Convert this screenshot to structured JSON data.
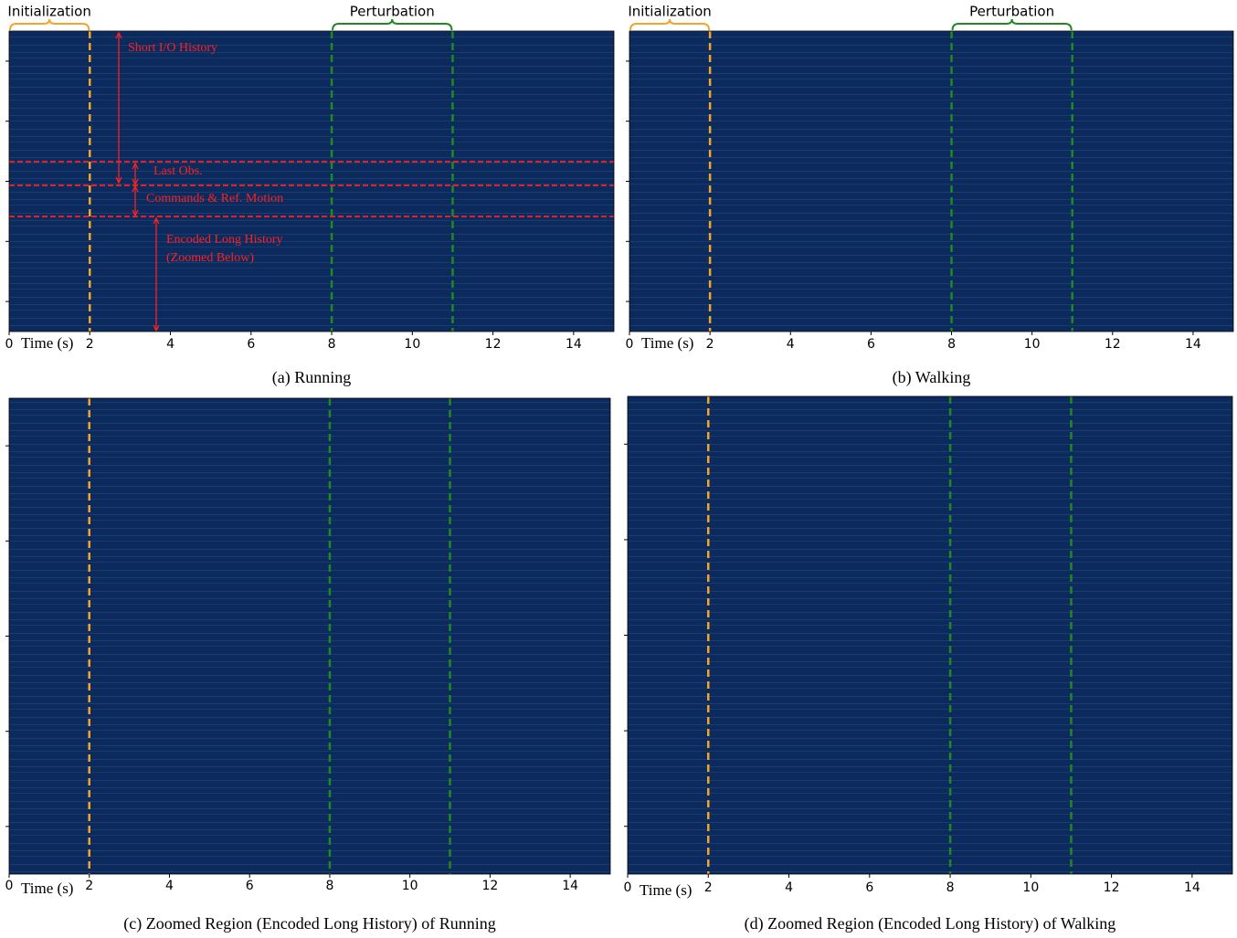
{
  "chart_data": [
    {
      "type": "heatmap",
      "caption": "(a) Running",
      "xlabel": "Time (s)",
      "xlim": [
        0,
        15
      ],
      "xticks": [
        0,
        2,
        4,
        6,
        8,
        10,
        12,
        14
      ],
      "markers": [
        {
          "x": 2,
          "color": "#f2a52a"
        },
        {
          "x": 8,
          "color": "#1f8a1f"
        },
        {
          "x": 11,
          "color": "#1f8a1f"
        }
      ],
      "brackets": [
        {
          "label": "Initialization",
          "range": [
            0,
            2
          ],
          "color": "#f2a52a"
        },
        {
          "label": "Perturbation",
          "range": [
            8,
            11
          ],
          "color": "#1f8a1f"
        }
      ],
      "annotations": [
        "Short I/O History",
        "Last Obs.",
        "Commands & Ref. Motion",
        "Encoded Long History",
        "(Zoomed Below)"
      ],
      "annotation_color": "#ff2020"
    },
    {
      "type": "heatmap",
      "caption": "(b) Walking",
      "xlabel": "Time (s)",
      "xlim": [
        0,
        15
      ],
      "xticks": [
        0,
        2,
        4,
        6,
        8,
        10,
        12,
        14
      ],
      "markers": [
        {
          "x": 2,
          "color": "#f2a52a"
        },
        {
          "x": 8,
          "color": "#1f8a1f"
        },
        {
          "x": 11,
          "color": "#1f8a1f"
        }
      ],
      "brackets": [
        {
          "label": "Initialization",
          "range": [
            0,
            2
          ],
          "color": "#f2a52a"
        },
        {
          "label": "Perturbation",
          "range": [
            8,
            11
          ],
          "color": "#1f8a1f"
        }
      ],
      "annotation_color": "#ff2020"
    },
    {
      "type": "heatmap",
      "caption": "(c) Zoomed Region (Encoded Long History) of Running",
      "xlabel": "Time (s)",
      "xlim": [
        0,
        15
      ],
      "xticks": [
        0,
        2,
        4,
        6,
        8,
        10,
        12,
        14
      ],
      "markers": [
        {
          "x": 2,
          "color": "#f2a52a"
        },
        {
          "x": 8,
          "color": "#1f8a1f"
        },
        {
          "x": 11,
          "color": "#1f8a1f"
        }
      ]
    },
    {
      "type": "heatmap",
      "caption": "(d) Zoomed Region (Encoded Long History) of Walking",
      "xlabel": "Time (s)",
      "xlim": [
        0,
        15
      ],
      "xticks": [
        0,
        2,
        4,
        6,
        8,
        10,
        12,
        14
      ],
      "markers": [
        {
          "x": 2,
          "color": "#f2a52a"
        },
        {
          "x": 8,
          "color": "#1f8a1f"
        },
        {
          "x": 11,
          "color": "#1f8a1f"
        }
      ]
    }
  ]
}
